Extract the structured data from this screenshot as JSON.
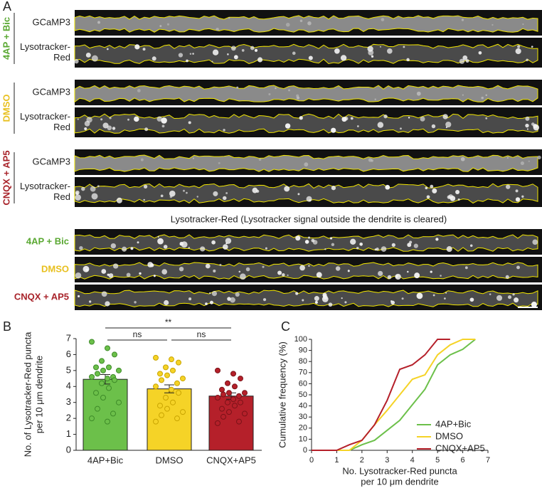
{
  "panel_a": {
    "label": "A",
    "groups": [
      {
        "name": "4AP + Bic",
        "color": "#5aa832",
        "rows": [
          [
            "GCaMP3"
          ],
          [
            "Lysotracker-",
            "Red"
          ]
        ]
      },
      {
        "name": "DMSO",
        "color": "#e8c020",
        "rows": [
          [
            "GCaMP3"
          ],
          [
            "Lysotracker-",
            "Red"
          ]
        ]
      },
      {
        "name": "CNQX + AP5",
        "color": "#a8232a",
        "rows": [
          [
            "GCaMP3"
          ],
          [
            "Lysotracker-",
            "Red"
          ]
        ]
      }
    ],
    "cleared_title": "Lysotracker-Red (Lysotracker signal outside the dendrite is cleared)",
    "cleared_rows": [
      {
        "name": "4AP + Bic",
        "color": "#5aa832"
      },
      {
        "name": "DMSO",
        "color": "#e8c020"
      },
      {
        "name": "CNQX + AP5",
        "color": "#a8232a"
      }
    ]
  },
  "chart_data": [
    {
      "type": "bar",
      "panel": "B",
      "ylabel": [
        "No. of Lysotracker-Red puncta",
        "per 10 μm dendrite"
      ],
      "categories": [
        "4AP+Bic",
        "DMSO",
        "CNQX+AP5"
      ],
      "values": [
        4.45,
        3.85,
        3.4
      ],
      "errors": [
        0.3,
        0.25,
        0.2
      ],
      "colors": [
        "#6cc04a",
        "#f5d327",
        "#b5202a"
      ],
      "points": [
        [
          6.8,
          6.4,
          6.0,
          5.6,
          5.2,
          5.2,
          5.0,
          5.0,
          4.8,
          4.6,
          4.6,
          4.5,
          4.4,
          4.2,
          3.9,
          3.6,
          3.3,
          3.0,
          2.6,
          2.3,
          2.0,
          1.8
        ],
        [
          5.8,
          5.7,
          5.5,
          5.2,
          5.0,
          4.8,
          4.7,
          4.5,
          4.4,
          4.2,
          4.0,
          3.8,
          3.6,
          3.3,
          3.0,
          2.8,
          2.6,
          2.4,
          2.2,
          2.0,
          1.8
        ],
        [
          5.0,
          4.8,
          4.5,
          4.2,
          4.0,
          3.8,
          3.6,
          3.6,
          3.5,
          3.4,
          3.3,
          3.2,
          3.0,
          3.0,
          2.8,
          2.6,
          2.4,
          2.3,
          2.1,
          1.8,
          1.7
        ]
      ],
      "annotations": [
        "**",
        "ns",
        "ns"
      ],
      "ylim": [
        0,
        7
      ],
      "yticks": [
        0,
        1,
        2,
        3,
        4,
        5,
        6,
        7
      ]
    },
    {
      "type": "line",
      "panel": "C",
      "ylabel": "Cumulative frequency (%)",
      "xlabel": [
        "No. Lysotracker-Red puncta",
        "per 10 μm dendrite"
      ],
      "x": [
        0,
        0.5,
        1,
        1.5,
        2,
        2.5,
        3,
        3.5,
        4,
        4.5,
        5,
        5.5,
        6,
        6.5
      ],
      "series": [
        {
          "name": "4AP+Bic",
          "color": "#6cc04a",
          "values": [
            0,
            0,
            0,
            0,
            5,
            9,
            18,
            27,
            41,
            55,
            77,
            86,
            91,
            100
          ]
        },
        {
          "name": "DMSO",
          "color": "#f5d327",
          "values": [
            0,
            0,
            0,
            0,
            9,
            23,
            36,
            50,
            64,
            68,
            86,
            95,
            100,
            100
          ]
        },
        {
          "name": "CNQX+AP5",
          "color": "#b5202a",
          "values": [
            0,
            0,
            0,
            5,
            9,
            23,
            45,
            73,
            77,
            86,
            100,
            100,
            null,
            null
          ]
        }
      ],
      "xlim": [
        0,
        7
      ],
      "xticks": [
        0,
        1,
        2,
        3,
        4,
        5,
        6,
        7
      ],
      "ylim": [
        0,
        100
      ],
      "yticks": [
        0,
        10,
        20,
        30,
        40,
        50,
        60,
        70,
        80,
        90,
        100
      ]
    }
  ]
}
